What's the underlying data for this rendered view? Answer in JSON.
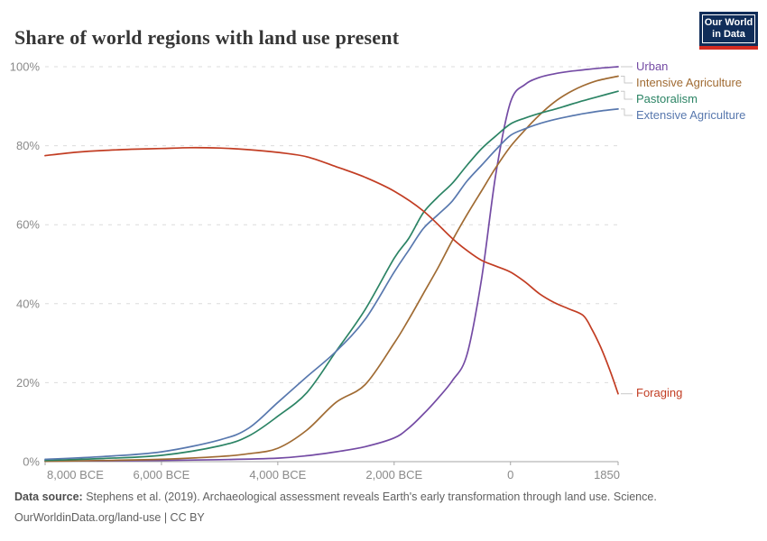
{
  "header": {
    "logo_line1": "Our World",
    "logo_line2": "in Data",
    "logo_bg_color": "#102D59",
    "logo_bar_color": "#D42B21"
  },
  "chart_data": {
    "type": "line",
    "title": "Share of world regions with land use present",
    "xlabel": "",
    "ylabel": "",
    "xlim": [
      -8000,
      1850
    ],
    "ylim": [
      0,
      100
    ],
    "grid": "horizontal-dashed",
    "legend_position": "right-of-line-ends",
    "x_ticks": [
      {
        "value": -8000,
        "label": "8,000 BCE"
      },
      {
        "value": -6000,
        "label": "6,000 BCE"
      },
      {
        "value": -4000,
        "label": "4,000 BCE"
      },
      {
        "value": -2000,
        "label": "2,000 BCE"
      },
      {
        "value": 0,
        "label": "0"
      },
      {
        "value": 1850,
        "label": "1850"
      }
    ],
    "y_ticks": [
      {
        "value": 0,
        "label": "0%"
      },
      {
        "value": 20,
        "label": "20%"
      },
      {
        "value": 40,
        "label": "40%"
      },
      {
        "value": 60,
        "label": "60%"
      },
      {
        "value": 80,
        "label": "80%"
      },
      {
        "value": 100,
        "label": "100%"
      }
    ],
    "series": [
      {
        "name": "Urban",
        "color": "#744BA4",
        "points": [
          [
            -8000,
            0.15
          ],
          [
            -7000,
            0.2
          ],
          [
            -6000,
            0.3
          ],
          [
            -5000,
            0.5
          ],
          [
            -4000,
            0.9
          ],
          [
            -3500,
            1.5
          ],
          [
            -3000,
            2.5
          ],
          [
            -2500,
            3.8
          ],
          [
            -2000,
            6
          ],
          [
            -1750,
            8.5
          ],
          [
            -1500,
            12
          ],
          [
            -1250,
            16
          ],
          [
            -1000,
            20.5
          ],
          [
            -750,
            27
          ],
          [
            -500,
            46
          ],
          [
            -250,
            73
          ],
          [
            0,
            91
          ],
          [
            250,
            95.5
          ],
          [
            500,
            97.3
          ],
          [
            750,
            98.2
          ],
          [
            1000,
            98.8
          ],
          [
            1250,
            99.2
          ],
          [
            1500,
            99.6
          ],
          [
            1850,
            100
          ]
        ]
      },
      {
        "name": "Intensive Agriculture",
        "color": "#A06B33",
        "points": [
          [
            -8000,
            0.1
          ],
          [
            -7000,
            0.3
          ],
          [
            -6000,
            0.6
          ],
          [
            -5000,
            1.3
          ],
          [
            -4500,
            2
          ],
          [
            -4000,
            3.4
          ],
          [
            -3500,
            8
          ],
          [
            -3000,
            15
          ],
          [
            -2500,
            19.5
          ],
          [
            -2000,
            30
          ],
          [
            -1750,
            36
          ],
          [
            -1500,
            42.5
          ],
          [
            -1250,
            49
          ],
          [
            -1000,
            56
          ],
          [
            -750,
            62.5
          ],
          [
            -500,
            68.5
          ],
          [
            -250,
            74.5
          ],
          [
            0,
            79.8
          ],
          [
            250,
            84
          ],
          [
            500,
            87.8
          ],
          [
            750,
            91
          ],
          [
            1000,
            93.4
          ],
          [
            1250,
            95.2
          ],
          [
            1500,
            96.5
          ],
          [
            1850,
            97.6
          ]
        ]
      },
      {
        "name": "Pastoralism",
        "color": "#2C8465",
        "points": [
          [
            -8000,
            0.3
          ],
          [
            -7000,
            0.8
          ],
          [
            -6000,
            1.6
          ],
          [
            -5000,
            4
          ],
          [
            -4500,
            6.5
          ],
          [
            -4000,
            11.5
          ],
          [
            -3500,
            17.5
          ],
          [
            -3000,
            27.9
          ],
          [
            -2500,
            38.5
          ],
          [
            -2000,
            51.5
          ],
          [
            -1750,
            56.5
          ],
          [
            -1500,
            63
          ],
          [
            -1250,
            67
          ],
          [
            -1000,
            70.5
          ],
          [
            -750,
            75
          ],
          [
            -500,
            79.2
          ],
          [
            -250,
            82.5
          ],
          [
            0,
            85.5
          ],
          [
            250,
            87
          ],
          [
            500,
            88.2
          ],
          [
            750,
            89.2
          ],
          [
            1000,
            90.3
          ],
          [
            1250,
            91.4
          ],
          [
            1500,
            92.4
          ],
          [
            1850,
            93.8
          ]
        ]
      },
      {
        "name": "Extensive Agriculture",
        "color": "#5878AE",
        "points": [
          [
            -8000,
            0.6
          ],
          [
            -7000,
            1.3
          ],
          [
            -6000,
            2.5
          ],
          [
            -5000,
            5.5
          ],
          [
            -4500,
            8.5
          ],
          [
            -4000,
            15
          ],
          [
            -3500,
            21.5
          ],
          [
            -3000,
            27.9
          ],
          [
            -2500,
            36
          ],
          [
            -2000,
            48
          ],
          [
            -1750,
            53.5
          ],
          [
            -1500,
            59
          ],
          [
            -1250,
            62.5
          ],
          [
            -1000,
            66
          ],
          [
            -750,
            71
          ],
          [
            -500,
            75
          ],
          [
            -250,
            79
          ],
          [
            0,
            82.6
          ],
          [
            250,
            84.3
          ],
          [
            500,
            85.6
          ],
          [
            750,
            86.6
          ],
          [
            1000,
            87.4
          ],
          [
            1250,
            88.1
          ],
          [
            1500,
            88.7
          ],
          [
            1850,
            89.3
          ]
        ]
      },
      {
        "name": "Foraging",
        "color": "#C23D23",
        "points": [
          [
            -8000,
            77.5
          ],
          [
            -7500,
            78.3
          ],
          [
            -7000,
            78.8
          ],
          [
            -6500,
            79.1
          ],
          [
            -6000,
            79.3
          ],
          [
            -5500,
            79.5
          ],
          [
            -5000,
            79.4
          ],
          [
            -4500,
            79
          ],
          [
            -4000,
            78.3
          ],
          [
            -3500,
            77.2
          ],
          [
            -3000,
            74.7
          ],
          [
            -2500,
            72
          ],
          [
            -2000,
            68.5
          ],
          [
            -1500,
            63.5
          ],
          [
            -1000,
            56.5
          ],
          [
            -750,
            53.5
          ],
          [
            -500,
            51
          ],
          [
            -250,
            49.5
          ],
          [
            0,
            48
          ],
          [
            250,
            45.5
          ],
          [
            500,
            42.5
          ],
          [
            750,
            40.3
          ],
          [
            1000,
            38.7
          ],
          [
            1250,
            37
          ],
          [
            1400,
            33.5
          ],
          [
            1550,
            29
          ],
          [
            1700,
            23.5
          ],
          [
            1850,
            17.2
          ]
        ]
      }
    ]
  },
  "footer": {
    "datasource_label": "Data source:",
    "datasource_text": "Stephens et al. (2019). Archaeological assessment reveals Earth's early transformation through land use. Science.",
    "license_line": "OurWorldinData.org/land-use | CC BY"
  }
}
